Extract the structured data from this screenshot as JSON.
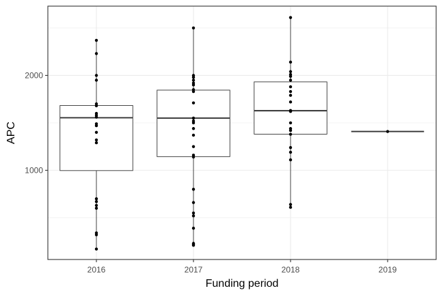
{
  "chart_data": {
    "type": "boxplot",
    "title": "",
    "xlabel": "Funding period",
    "ylabel": "APC",
    "categories": [
      "2016",
      "2017",
      "2018",
      "2019"
    ],
    "ylim": [
      60,
      2730
    ],
    "y_ticks": [
      1000,
      2000
    ],
    "y_tick_labels": [
      "1000",
      "2000"
    ],
    "grid": true,
    "legend": "none",
    "colors": {
      "panel_border": "#333333",
      "grid": "#ebebeb",
      "box_line": "#333333",
      "point": "#000000"
    },
    "boxes": [
      {
        "category": "2016",
        "q1": 997,
        "median": 1554,
        "q3": 1683,
        "whisker_low": 170,
        "whisker_high": 2370
      },
      {
        "category": "2017",
        "q1": 1144,
        "median": 1550,
        "q3": 1845,
        "whisker_low": 210,
        "whisker_high": 2500
      },
      {
        "category": "2018",
        "q1": 1381,
        "median": 1628,
        "q3": 1932,
        "whisker_low": 600,
        "whisker_high": 2610
      },
      {
        "category": "2019",
        "q1": 1409,
        "median": 1409,
        "q3": 1409,
        "whisker_low": 1409,
        "whisker_high": 1409
      }
    ],
    "points": [
      {
        "category": "2016",
        "values": [
          2370,
          2230,
          2000,
          1950,
          1700,
          1680,
          1600,
          1580,
          1560,
          1490,
          1470,
          1400,
          1320,
          1290,
          700,
          670,
          630,
          600,
          340,
          320,
          170
        ]
      },
      {
        "category": "2017",
        "values": [
          2500,
          2000,
          1980,
          1950,
          1920,
          1900,
          1850,
          1830,
          1710,
          1550,
          1520,
          1500,
          1440,
          1370,
          1250,
          1160,
          1140,
          800,
          660,
          550,
          520,
          390,
          230,
          220,
          210
        ]
      },
      {
        "category": "2018",
        "values": [
          2610,
          2140,
          2040,
          2010,
          1990,
          1950,
          1880,
          1830,
          1790,
          1720,
          1630,
          1620,
          1500,
          1440,
          1420,
          1380,
          1240,
          1190,
          1110,
          640,
          610
        ]
      },
      {
        "category": "2019",
        "values": [
          1409
        ]
      }
    ]
  }
}
